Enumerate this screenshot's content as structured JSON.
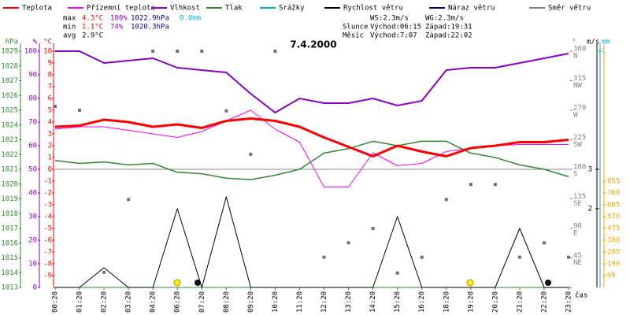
{
  "legend": [
    {
      "name": "Teplota",
      "color": "#ff0000"
    },
    {
      "name": "Přízemní teplota",
      "color": "#ff00ff"
    },
    {
      "name": "Vlhkost",
      "color": "#8b00c8"
    },
    {
      "name": "Tlak",
      "color": "#2e8b2e"
    },
    {
      "name": "Srážky",
      "color": "#00b0d0"
    },
    {
      "name": "Rychlost větru",
      "color": "#000000"
    },
    {
      "name": "Náraz větru",
      "color": "#000080"
    },
    {
      "name": "Směr větru",
      "color": "#808080"
    }
  ],
  "stats": {
    "max": {
      "label": "max",
      "temp": "4.3°C",
      "humidity": "100%",
      "pressure": "1022.9hPa",
      "rain": "0.0mm"
    },
    "min": {
      "label": "min",
      "temp": "1.1°C",
      "humidity": "74%",
      "pressure": "1020.3hPa"
    },
    "avg": {
      "label": "avg",
      "temp": "2.9°C"
    },
    "ws": "WS:2.3m/s",
    "wg": "WG:2.3m/s",
    "sun": {
      "label": "Slunce",
      "rise": "Východ:06:15",
      "set": "Západ:19:31"
    },
    "moon": {
      "label": "Měsíc",
      "rise": "Východ:7:07",
      "set": "Západ:22:02"
    }
  },
  "chart_data": {
    "type": "line",
    "title": "7.4.2000",
    "xlabel": "čas",
    "categories": [
      "00:20",
      "01:20",
      "02:20",
      "03:20",
      "04:20",
      "06:20",
      "07:20",
      "08:20",
      "09:20",
      "10:20",
      "11:20",
      "12:20",
      "13:20",
      "14:20",
      "15:20",
      "16:20",
      "18:20",
      "19:20",
      "20:20",
      "21:20",
      "22:20",
      "23:20"
    ],
    "axes": {
      "pressure": {
        "label": "hPa",
        "color": "#2e8b2e",
        "lim": [
          1013,
          1029
        ],
        "ticks": [
          1013,
          1014,
          1015,
          1016,
          1017,
          1018,
          1019,
          1020,
          1021,
          1022,
          1023,
          1024,
          1025,
          1026,
          1027,
          1028,
          1029
        ]
      },
      "humidity": {
        "label": "%",
        "color": "#8b00c8",
        "lim": [
          0,
          100
        ],
        "ticks": [
          0,
          10,
          20,
          30,
          40,
          50,
          60,
          70,
          80,
          90,
          100
        ]
      },
      "temp": {
        "label": "°C",
        "color": "#ff0000",
        "lim": [
          -10,
          10
        ],
        "ticks": [
          -9,
          -8,
          -7,
          -6,
          -5,
          -4,
          -3,
          -2,
          -1,
          0,
          1,
          2,
          3,
          4,
          5,
          6,
          7,
          8,
          9,
          10
        ]
      },
      "direction": {
        "label": "°",
        "color": "#808080",
        "lim": [
          0,
          360
        ],
        "ticks": [
          45,
          90,
          135,
          180,
          225,
          270,
          315,
          360
        ],
        "compass": [
          "NE",
          "E",
          "SE",
          "S",
          "SW",
          "W",
          "NW",
          "N"
        ]
      },
      "speed": {
        "label": "m/s",
        "color": "#000000",
        "lim": [
          0,
          6
        ],
        "ticks": [
          2,
          3
        ]
      },
      "rain": {
        "label": "mm",
        "color": "#00b0d0",
        "lim": [
          0,
          1
        ],
        "ticks": [
          1
        ]
      },
      "radiation": {
        "color": "#ffa500",
        "lim": [
          0,
          1900
        ],
        "ticks": [
          95,
          190,
          285,
          380,
          475,
          570,
          665,
          760,
          855
        ]
      }
    },
    "series": [
      {
        "name": "Vlhkost",
        "color": "#8b00c8",
        "axis": "humidity",
        "style": "line",
        "width": 2,
        "values": [
          100,
          100,
          95,
          96,
          97,
          93,
          92,
          91,
          82,
          74,
          80,
          78,
          78,
          80,
          77,
          79,
          92,
          93,
          93,
          95,
          97,
          99
        ]
      },
      {
        "name": "Přízemní teplota",
        "color": "#ff00ff",
        "axis": "temp",
        "style": "line",
        "width": 1,
        "values": [
          3.4,
          3.6,
          3.6,
          3.3,
          3.0,
          2.7,
          3.2,
          4.1,
          5.0,
          3.4,
          2.3,
          -1.5,
          -1.5,
          1.4,
          0.3,
          0.5,
          1.5,
          1.8,
          2.0,
          2.1,
          2.1,
          2.1
        ]
      },
      {
        "name": "Tlak",
        "color": "#2e8b2e",
        "axis": "pressure",
        "style": "line",
        "width": 1.5,
        "values": [
          1021.6,
          1021.4,
          1021.5,
          1021.3,
          1021.4,
          1020.8,
          1020.7,
          1020.4,
          1020.3,
          1020.6,
          1021.0,
          1022.1,
          1022.4,
          1022.9,
          1022.6,
          1022.9,
          1022.9,
          1022.1,
          1021.8,
          1021.3,
          1021.0,
          1020.5
        ]
      },
      {
        "name": "Rychlost větru",
        "color": "#000000",
        "axis": "speed",
        "style": "line",
        "width": 1,
        "values": [
          0,
          0,
          0.5,
          0,
          0,
          2,
          0,
          2.3,
          0,
          0,
          0,
          0,
          0,
          0,
          1.8,
          0,
          0,
          0,
          0,
          1.5,
          0,
          0
        ]
      },
      {
        "name": "Teplota",
        "color": "#ff0000",
        "axis": "temp",
        "style": "line",
        "width": 3,
        "values": [
          3.6,
          3.7,
          4.2,
          4.0,
          3.6,
          3.8,
          3.5,
          4.1,
          4.3,
          4.1,
          3.6,
          2.7,
          1.9,
          1.1,
          2.0,
          1.5,
          1.1,
          1.8,
          2.0,
          2.3,
          2.3,
          2.5
        ]
      },
      {
        "name": "Směr větru",
        "color": "#707070",
        "axis": "direction",
        "style": "points",
        "values": [
          276,
          270,
          23,
          134,
          360,
          360,
          360,
          269,
          203,
          360,
          null,
          46,
          68,
          90,
          22,
          46,
          134,
          157,
          157,
          46,
          68,
          46
        ]
      }
    ]
  }
}
